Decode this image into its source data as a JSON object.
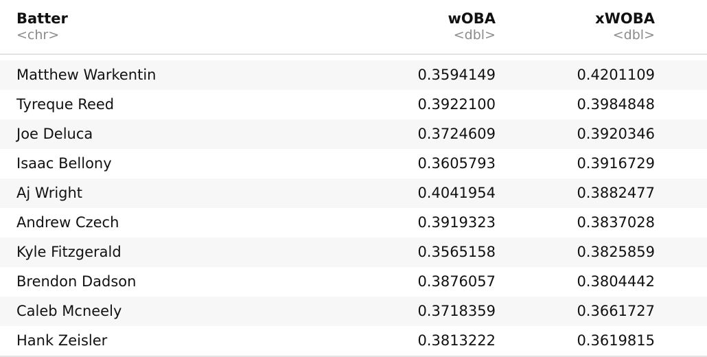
{
  "table": {
    "columns": [
      {
        "name": "Batter",
        "type": "<chr>"
      },
      {
        "name": "wOBA",
        "type": "<dbl>"
      },
      {
        "name": "xWOBA",
        "type": "<dbl>"
      }
    ],
    "rows": [
      {
        "batter": "Matthew Warkentin",
        "woba": "0.3594149",
        "xwoba": "0.4201109"
      },
      {
        "batter": "Tyreque Reed",
        "woba": "0.3922100",
        "xwoba": "0.3984848"
      },
      {
        "batter": "Joe Deluca",
        "woba": "0.3724609",
        "xwoba": "0.3920346"
      },
      {
        "batter": "Isaac Bellony",
        "woba": "0.3605793",
        "xwoba": "0.3916729"
      },
      {
        "batter": "Aj Wright",
        "woba": "0.4041954",
        "xwoba": "0.3882477"
      },
      {
        "batter": "Andrew Czech",
        "woba": "0.3919323",
        "xwoba": "0.3837028"
      },
      {
        "batter": "Kyle Fitzgerald",
        "woba": "0.3565158",
        "xwoba": "0.3825859"
      },
      {
        "batter": "Brendon Dadson",
        "woba": "0.3876057",
        "xwoba": "0.3804442"
      },
      {
        "batter": "Caleb Mcneely",
        "woba": "0.3718359",
        "xwoba": "0.3661727"
      },
      {
        "batter": "Hank Zeisler",
        "woba": "0.3813222",
        "xwoba": "0.3619815"
      }
    ]
  }
}
